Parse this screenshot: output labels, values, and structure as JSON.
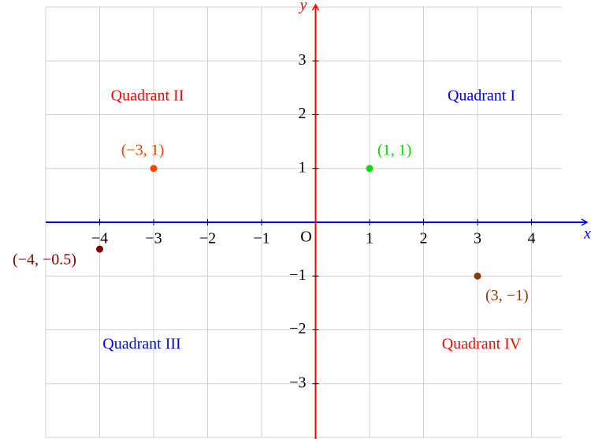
{
  "chart_data": {
    "type": "scatter",
    "x_label": "x",
    "y_label": "y",
    "origin_label": "O",
    "x_axis_color": "#0000ff",
    "y_axis_color": "#ff0000",
    "xlim": [
      -5,
      5
    ],
    "ylim": [
      -4,
      4
    ],
    "xticks": [
      {
        "value": -4,
        "label": "−4"
      },
      {
        "value": -3,
        "label": "−3"
      },
      {
        "value": -2,
        "label": "−2"
      },
      {
        "value": -1,
        "label": "−1"
      },
      1,
      2,
      3,
      4
    ],
    "yticks": [
      {
        "value": -3,
        "label": "−3"
      },
      {
        "value": -2,
        "label": "−2"
      },
      {
        "value": -1,
        "label": "−1"
      },
      1,
      2,
      3
    ],
    "grid": true,
    "series": [
      {
        "color": "#00e000",
        "x": [
          1
        ],
        "values": [
          1
        ],
        "value_labels": [
          "(1, 1)"
        ]
      },
      {
        "color": "#ff4000",
        "x": [
          -3
        ],
        "values": [
          1
        ],
        "value_labels": [
          "(−3, 1)"
        ]
      },
      {
        "color": "#800000",
        "x": [
          -4
        ],
        "values": [
          -0.5
        ],
        "value_labels": [
          "(−4, −0.5)"
        ]
      },
      {
        "color": "#8b3a0f",
        "x": [
          3
        ],
        "values": [
          -1
        ],
        "value_labels": [
          "(3, −1)"
        ]
      }
    ],
    "annotations": [
      {
        "text": "Quadrant I",
        "color": "#0000ff"
      },
      {
        "text": "Quadrant II",
        "color": "#ff0000"
      },
      {
        "text": "Quadrant III",
        "color": "#0000ff"
      },
      {
        "text": "Quadrant IV",
        "color": "#ff0000"
      }
    ]
  }
}
